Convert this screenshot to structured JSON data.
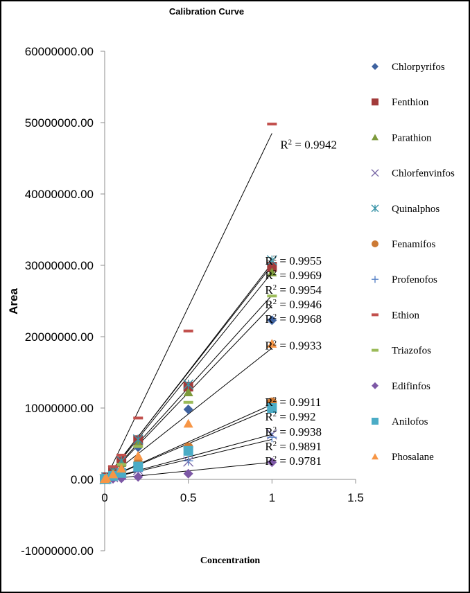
{
  "chart_data": {
    "type": "scatter",
    "title": "Calibration Curve",
    "xlabel": "Concentration",
    "ylabel": "Area",
    "xlim": [
      0,
      1.5
    ],
    "ylim": [
      -10000000,
      60000000
    ],
    "xticks": [
      0,
      0.5,
      1,
      1.5
    ],
    "xtick_labels": [
      "0",
      "0.5",
      "1",
      "1.5"
    ],
    "yticks": [
      -10000000,
      0,
      10000000,
      20000000,
      30000000,
      40000000,
      50000000,
      60000000
    ],
    "ytick_labels": [
      "-10000000.00",
      "0.00",
      "10000000.00",
      "20000000.00",
      "30000000.00",
      "40000000.00",
      "50000000.00",
      "60000000.00"
    ],
    "legend_position": "right",
    "trendlines": "linear",
    "r2_prefix": "R",
    "r2_suffix": " = ",
    "series": [
      {
        "name": "Chlorpyrifos",
        "marker": "diamond",
        "color": "#3E62A0",
        "x": [
          0,
          0.01,
          0.05,
          0.1,
          0.2,
          0.5,
          1
        ],
        "y": [
          30000,
          200000,
          900000,
          2000000,
          4500000,
          9800000,
          22300000
        ],
        "r2": "0.9968",
        "fit": [
          -100000,
          24400000
        ]
      },
      {
        "name": "Fenthion",
        "marker": "square",
        "color": "#A23B3A",
        "x": [
          0,
          0.01,
          0.05,
          0.1,
          0.2,
          0.5,
          1
        ],
        "y": [
          50000,
          300000,
          1100000,
          2500000,
          5500000,
          13000000,
          29800000
        ],
        "r2": "0.9969",
        "fit": [
          0,
          30000000
        ]
      },
      {
        "name": "Parathion",
        "marker": "triangle",
        "color": "#7D9A3C",
        "x": [
          0,
          0.01,
          0.05,
          0.1,
          0.2,
          0.5,
          1
        ],
        "y": [
          40000,
          250000,
          1000000,
          2300000,
          5000000,
          12200000,
          29000000
        ],
        "r2": "0.9954",
        "fit": [
          -100000,
          29000000
        ]
      },
      {
        "name": "Chlorfenvinfos",
        "marker": "x",
        "color": "#7B6BA8",
        "x": [
          0,
          0.01,
          0.05,
          0.1,
          0.2,
          0.5,
          1
        ],
        "y": [
          10000,
          60000,
          300000,
          600000,
          1300000,
          2500000,
          6300000
        ],
        "r2": "0.9938",
        "fit": [
          0,
          6300000
        ]
      },
      {
        "name": "Quinalphos",
        "marker": "star",
        "color": "#3B95A8",
        "x": [
          0,
          0.01,
          0.05,
          0.1,
          0.2,
          0.5,
          1
        ],
        "y": [
          40000,
          300000,
          1200000,
          2600000,
          5600000,
          13300000,
          30700000
        ],
        "r2": "0.9955",
        "fit": [
          -100000,
          30300000
        ]
      },
      {
        "name": "Fenamifos",
        "marker": "circle",
        "color": "#CC7A35",
        "x": [
          0,
          0.01,
          0.05,
          0.1,
          0.2,
          0.5,
          1
        ],
        "y": [
          20000,
          100000,
          500000,
          1100000,
          2300000,
          4500000,
          10800000
        ],
        "r2": "0.9911",
        "fit": [
          0,
          10500000
        ]
      },
      {
        "name": "Profenofos",
        "marker": "plus",
        "color": "#5A84C7",
        "x": [
          0,
          0.01,
          0.05,
          0.1,
          0.2,
          0.5,
          1
        ],
        "y": [
          10000,
          50000,
          250000,
          500000,
          1100000,
          2600000,
          5900000
        ],
        "r2": "0.9891",
        "fit": [
          0,
          5600000
        ]
      },
      {
        "name": "Ethion",
        "marker": "dash",
        "color": "#C2504D",
        "x": [
          0,
          0.01,
          0.05,
          0.1,
          0.2,
          0.5,
          1
        ],
        "y": [
          80000,
          500000,
          1800000,
          3400000,
          8600000,
          20800000,
          49800000
        ],
        "r2": "0.9942",
        "fit": [
          -200000,
          48500000
        ]
      },
      {
        "name": "Triazofos",
        "marker": "dash",
        "color": "#9BBB59",
        "x": [
          0,
          0.01,
          0.05,
          0.1,
          0.2,
          0.5,
          1
        ],
        "y": [
          30000,
          200000,
          900000,
          2100000,
          4600000,
          10800000,
          25700000
        ],
        "r2": "0.9946",
        "fit": [
          -100000,
          25800000
        ]
      },
      {
        "name": "Edifinfos",
        "marker": "diamond",
        "color": "#7D58A6",
        "x": [
          0,
          0.01,
          0.05,
          0.1,
          0.2,
          0.5,
          1
        ],
        "y": [
          5000,
          20000,
          80000,
          150000,
          350000,
          800000,
          2400000
        ],
        "r2": "0.9781",
        "fit": [
          0,
          2400000
        ]
      },
      {
        "name": "Anilofos",
        "marker": "square",
        "color": "#4BACC6",
        "x": [
          0,
          0.01,
          0.05,
          0.1,
          0.2,
          0.5,
          1
        ],
        "y": [
          20000,
          100000,
          500000,
          900000,
          1800000,
          4000000,
          10000000
        ],
        "r2": "0.992",
        "fit": [
          0,
          10000000
        ]
      },
      {
        "name": "Phosalane",
        "marker": "triangle",
        "color": "#F79646",
        "x": [
          0,
          0.01,
          0.05,
          0.1,
          0.2,
          0.5,
          1
        ],
        "y": [
          30000,
          180000,
          700000,
          1500000,
          3300000,
          7800000,
          19000000
        ],
        "r2": "0.9933",
        "fit": [
          -100000,
          18400000
        ]
      }
    ]
  }
}
